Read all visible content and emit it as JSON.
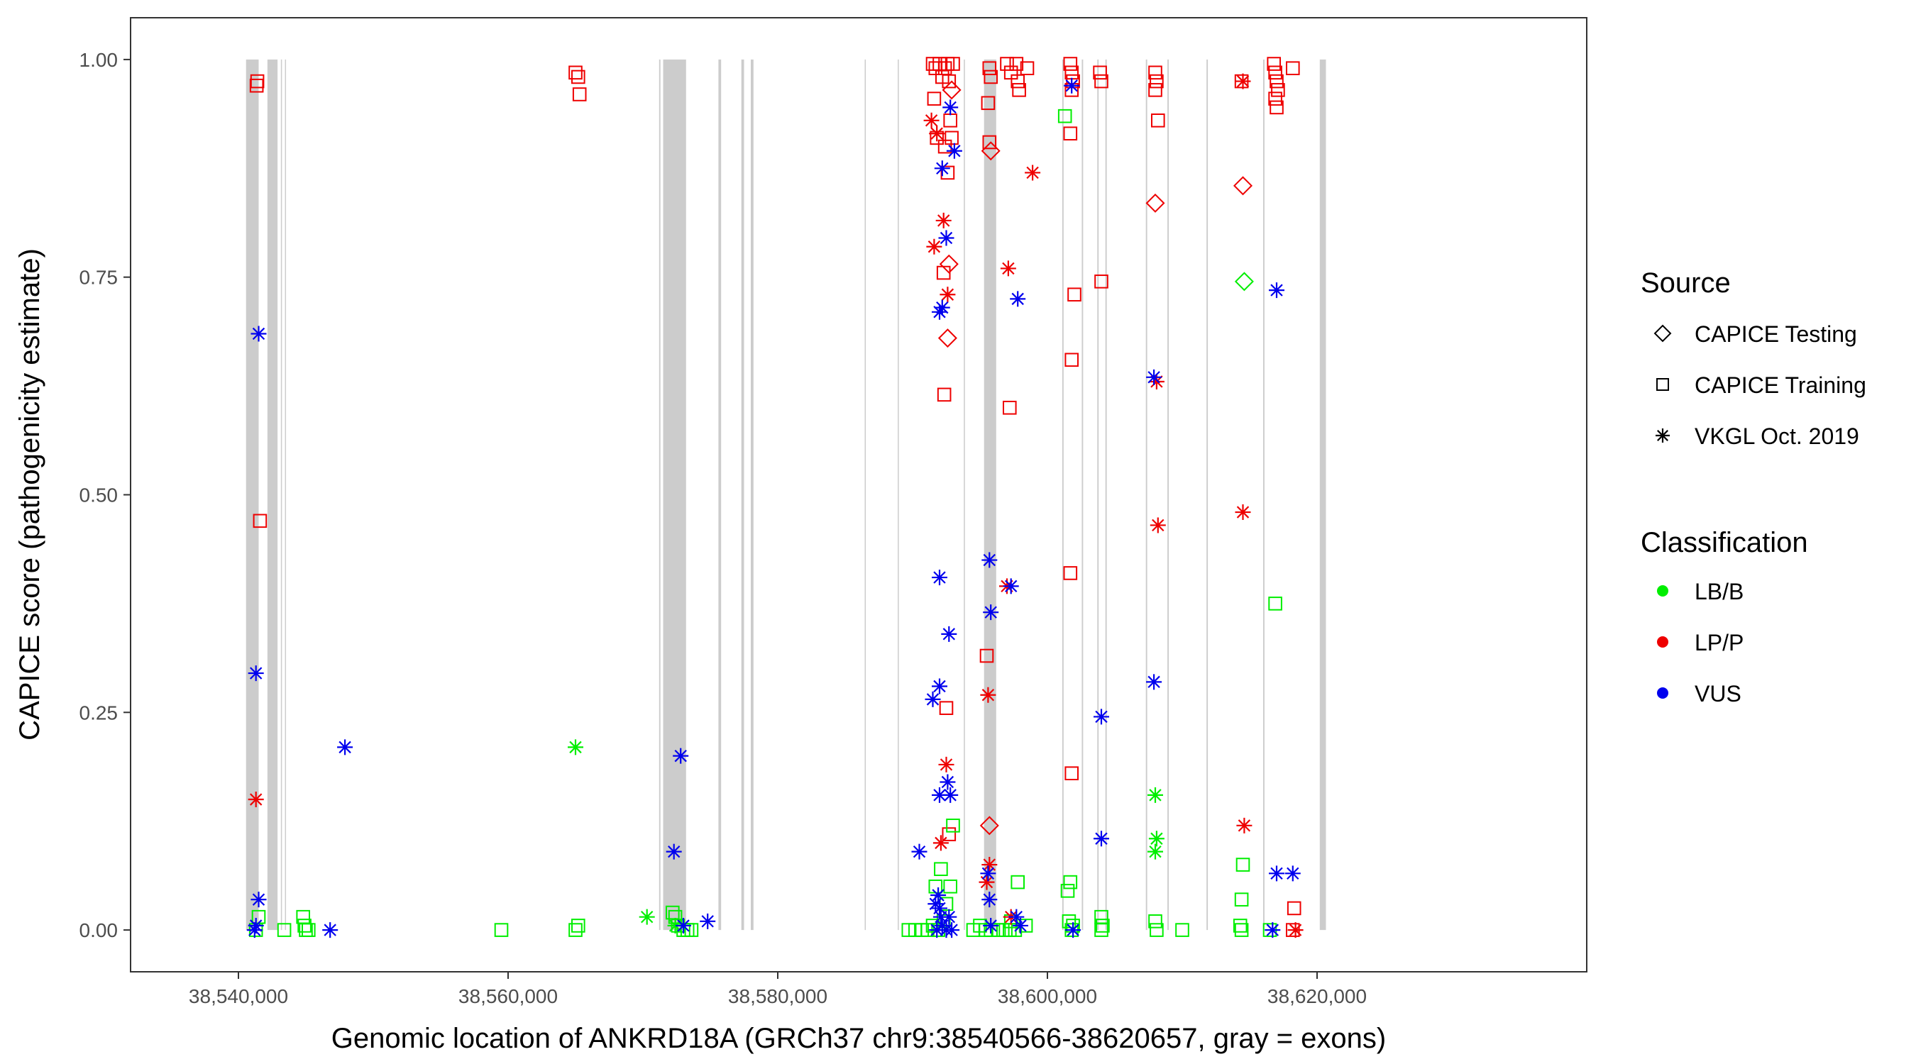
{
  "chart_data": {
    "type": "scatter",
    "xlabel": "Genomic location of ANKRD18A (GRCh37 chr9:38540566-38620657, gray = exons)",
    "ylabel": "CAPICE score (pathogenicity estimate)",
    "xlim": [
      38532000,
      38640000
    ],
    "ylim": [
      -0.048,
      1.048
    ],
    "x_ticks": [
      38540000,
      38560000,
      38580000,
      38600000,
      38620000
    ],
    "x_tick_labels": [
      "38,540,000",
      "38,560,000",
      "38,580,000",
      "38,600,000",
      "38,620,000"
    ],
    "y_ticks": [
      0,
      0.25,
      0.5,
      0.75,
      1.0
    ],
    "y_tick_labels": [
      "0.00",
      "0.25",
      "0.50",
      "0.75",
      "1.00"
    ],
    "grid": false,
    "exons": [
      [
        38540566,
        38541500
      ],
      [
        38542150,
        38542900
      ],
      [
        38543150,
        38543200
      ],
      [
        38543450,
        38543500
      ],
      [
        38571200,
        38571300
      ],
      [
        38571500,
        38573200
      ],
      [
        38575600,
        38575800
      ],
      [
        38577300,
        38577500
      ],
      [
        38578000,
        38578200
      ],
      [
        38586450,
        38586520
      ],
      [
        38588900,
        38588960
      ],
      [
        38593800,
        38593880
      ],
      [
        38595300,
        38596200
      ],
      [
        38601100,
        38601200
      ],
      [
        38602550,
        38602650
      ],
      [
        38603700,
        38603800
      ],
      [
        38604300,
        38604400
      ],
      [
        38607300,
        38607400
      ],
      [
        38608900,
        38609000
      ],
      [
        38611800,
        38611900
      ],
      [
        38616000,
        38616100
      ],
      [
        38620200,
        38620657
      ]
    ],
    "legend": {
      "position": "right",
      "source_title": "Source",
      "source_items": [
        {
          "label": "CAPICE Testing",
          "shape": "diamond"
        },
        {
          "label": "CAPICE Training",
          "shape": "square"
        },
        {
          "label": "VKGL Oct. 2019",
          "shape": "asterisk"
        }
      ],
      "class_title": "Classification",
      "class_items": [
        {
          "label": "LB/B",
          "color": "#00ee00"
        },
        {
          "label": "LP/P",
          "color": "#ee0000"
        },
        {
          "label": "VUS",
          "color": "#0000ee"
        }
      ]
    },
    "series": [
      {
        "source": "CAPICE Training",
        "shape": "square",
        "classification": "LP/P",
        "color": "#ee0000",
        "points": [
          [
            38541350,
            0.97
          ],
          [
            38541400,
            0.975
          ],
          [
            38541600,
            0.47
          ],
          [
            38565000,
            0.985
          ],
          [
            38565200,
            0.98
          ],
          [
            38565300,
            0.96
          ],
          [
            38591500,
            0.995
          ],
          [
            38591700,
            0.99
          ],
          [
            38591600,
            0.955
          ],
          [
            38591800,
            0.91
          ],
          [
            38592000,
            0.995
          ],
          [
            38592200,
            0.98
          ],
          [
            38592400,
            0.99
          ],
          [
            38592600,
            0.995
          ],
          [
            38592700,
            0.975
          ],
          [
            38592800,
            0.93
          ],
          [
            38592900,
            0.91
          ],
          [
            38593000,
            0.995
          ],
          [
            38592300,
            0.755
          ],
          [
            38592350,
            0.615
          ],
          [
            38592500,
            0.255
          ],
          [
            38592700,
            0.11
          ],
          [
            38592400,
            0.9
          ],
          [
            38592600,
            0.87
          ],
          [
            38595700,
            0.99
          ],
          [
            38595800,
            0.98
          ],
          [
            38595600,
            0.95
          ],
          [
            38595700,
            0.905
          ],
          [
            38595500,
            0.315
          ],
          [
            38597000,
            0.995
          ],
          [
            38597300,
            0.985
          ],
          [
            38597700,
            0.995
          ],
          [
            38597800,
            0.975
          ],
          [
            38597900,
            0.965
          ],
          [
            38598500,
            0.99
          ],
          [
            38597200,
            0.6
          ],
          [
            38601700,
            0.995
          ],
          [
            38601800,
            0.985
          ],
          [
            38601900,
            0.975
          ],
          [
            38601800,
            0.965
          ],
          [
            38601700,
            0.915
          ],
          [
            38601800,
            0.655
          ],
          [
            38601700,
            0.41
          ],
          [
            38601800,
            0.18
          ],
          [
            38602000,
            0.73
          ],
          [
            38603900,
            0.985
          ],
          [
            38604000,
            0.975
          ],
          [
            38604000,
            0.745
          ],
          [
            38608000,
            0.985
          ],
          [
            38608100,
            0.975
          ],
          [
            38608000,
            0.965
          ],
          [
            38608200,
            0.93
          ],
          [
            38614400,
            0.975
          ],
          [
            38616800,
            0.995
          ],
          [
            38616900,
            0.985
          ],
          [
            38617000,
            0.975
          ],
          [
            38617100,
            0.965
          ],
          [
            38616900,
            0.955
          ],
          [
            38617000,
            0.945
          ],
          [
            38618200,
            0.99
          ],
          [
            38618300,
            0.025
          ],
          [
            38618200,
            0.0
          ]
        ]
      },
      {
        "source": "CAPICE Training",
        "shape": "square",
        "classification": "LB/B",
        "color": "#00ee00",
        "points": [
          [
            38541300,
            0.0
          ],
          [
            38541500,
            0.015
          ],
          [
            38543400,
            0.0
          ],
          [
            38544800,
            0.015
          ],
          [
            38544900,
            0.005
          ],
          [
            38545000,
            0.0
          ],
          [
            38545200,
            0.0
          ],
          [
            38559500,
            0.0
          ],
          [
            38565000,
            0.0
          ],
          [
            38565200,
            0.005
          ],
          [
            38572200,
            0.02
          ],
          [
            38572400,
            0.015
          ],
          [
            38572600,
            0.005
          ],
          [
            38573000,
            0.0
          ],
          [
            38573300,
            0.0
          ],
          [
            38573600,
            0.0
          ],
          [
            38589700,
            0.0
          ],
          [
            38590200,
            0.0
          ],
          [
            38590700,
            0.0
          ],
          [
            38591100,
            0.0
          ],
          [
            38591500,
            0.005
          ],
          [
            38591900,
            0.0
          ],
          [
            38591700,
            0.05
          ],
          [
            38592100,
            0.07
          ],
          [
            38592500,
            0.03
          ],
          [
            38592800,
            0.05
          ],
          [
            38593000,
            0.12
          ],
          [
            38592300,
            0.01
          ],
          [
            38594500,
            0.0
          ],
          [
            38595000,
            0.005
          ],
          [
            38595400,
            0.0
          ],
          [
            38595800,
            0.0
          ],
          [
            38596400,
            0.0
          ],
          [
            38596900,
            0.0
          ],
          [
            38597300,
            0.01
          ],
          [
            38597800,
            0.055
          ],
          [
            38597600,
            0.0
          ],
          [
            38598400,
            0.005
          ],
          [
            38597200,
            0.0
          ],
          [
            38601300,
            0.935
          ],
          [
            38601500,
            0.045
          ],
          [
            38601700,
            0.055
          ],
          [
            38601600,
            0.01
          ],
          [
            38601800,
            0.0
          ],
          [
            38601900,
            0.005
          ],
          [
            38604000,
            0.015
          ],
          [
            38604100,
            0.005
          ],
          [
            38604000,
            0.0
          ],
          [
            38608000,
            0.01
          ],
          [
            38608100,
            0.0
          ],
          [
            38610000,
            0.0
          ],
          [
            38614300,
            0.005
          ],
          [
            38614400,
            0.0
          ],
          [
            38614500,
            0.075
          ],
          [
            38614400,
            0.035
          ],
          [
            38616900,
            0.375
          ],
          [
            38616500,
            0.0
          ]
        ]
      },
      {
        "source": "CAPICE Testing",
        "shape": "diamond",
        "classification": "LP/P",
        "color": "#ee0000",
        "points": [
          [
            38592600,
            0.68
          ],
          [
            38592700,
            0.765
          ],
          [
            38592900,
            0.965
          ],
          [
            38595800,
            0.895
          ],
          [
            38595700,
            0.12
          ],
          [
            38608000,
            0.835
          ],
          [
            38614500,
            0.855
          ]
        ]
      },
      {
        "source": "CAPICE Testing",
        "shape": "diamond",
        "classification": "LB/B",
        "color": "#00ee00",
        "points": [
          [
            38614600,
            0.745
          ]
        ]
      },
      {
        "source": "VKGL Oct. 2019",
        "shape": "asterisk",
        "classification": "LP/P",
        "color": "#ee0000",
        "points": [
          [
            38541300,
            0.15
          ],
          [
            38591400,
            0.93
          ],
          [
            38591600,
            0.785
          ],
          [
            38591800,
            0.915
          ],
          [
            38592300,
            0.815
          ],
          [
            38592600,
            0.73
          ],
          [
            38592500,
            0.19
          ],
          [
            38592100,
            0.1
          ],
          [
            38595600,
            0.27
          ],
          [
            38595700,
            0.075
          ],
          [
            38595500,
            0.055
          ],
          [
            38597100,
            0.76
          ],
          [
            38597000,
            0.395
          ],
          [
            38597300,
            0.015
          ],
          [
            38598900,
            0.87
          ],
          [
            38608200,
            0.465
          ],
          [
            38608100,
            0.63
          ],
          [
            38614500,
            0.48
          ],
          [
            38614600,
            0.12
          ],
          [
            38614500,
            0.975
          ],
          [
            38618400,
            0.0
          ]
        ]
      },
      {
        "source": "VKGL Oct. 2019",
        "shape": "asterisk",
        "classification": "LB/B",
        "color": "#00ee00",
        "points": [
          [
            38565000,
            0.21
          ],
          [
            38570300,
            0.015
          ],
          [
            38572400,
            0.005
          ],
          [
            38608000,
            0.155
          ],
          [
            38608100,
            0.105
          ],
          [
            38608000,
            0.09
          ]
        ]
      },
      {
        "source": "VKGL Oct. 2019",
        "shape": "asterisk",
        "classification": "VUS",
        "color": "#0000ee",
        "points": [
          [
            38541500,
            0.685
          ],
          [
            38541300,
            0.295
          ],
          [
            38541500,
            0.035
          ],
          [
            38541300,
            0.005
          ],
          [
            38541200,
            0.0
          ],
          [
            38546800,
            0.0
          ],
          [
            38547900,
            0.21
          ],
          [
            38572300,
            0.09
          ],
          [
            38572800,
            0.2
          ],
          [
            38573000,
            0.005
          ],
          [
            38574800,
            0.01
          ],
          [
            38590500,
            0.09
          ],
          [
            38591500,
            0.265
          ],
          [
            38592000,
            0.405
          ],
          [
            38592000,
            0.71
          ],
          [
            38592200,
            0.715
          ],
          [
            38592000,
            0.28
          ],
          [
            38592200,
            0.875
          ],
          [
            38592500,
            0.795
          ],
          [
            38592800,
            0.945
          ],
          [
            38593100,
            0.895
          ],
          [
            38592700,
            0.34
          ],
          [
            38592600,
            0.17
          ],
          [
            38592000,
            0.155
          ],
          [
            38592800,
            0.155
          ],
          [
            38591900,
            0.04
          ],
          [
            38592000,
            0.025
          ],
          [
            38592100,
            0.015
          ],
          [
            38592200,
            0.005
          ],
          [
            38591800,
            0.0
          ],
          [
            38592500,
            0.0
          ],
          [
            38592900,
            0.0
          ],
          [
            38592700,
            0.015
          ],
          [
            38591700,
            0.03
          ],
          [
            38595700,
            0.425
          ],
          [
            38595800,
            0.365
          ],
          [
            38595600,
            0.065
          ],
          [
            38595700,
            0.035
          ],
          [
            38595800,
            0.005
          ],
          [
            38597300,
            0.395
          ],
          [
            38597800,
            0.725
          ],
          [
            38597700,
            0.015
          ],
          [
            38598000,
            0.005
          ],
          [
            38601800,
            0.97
          ],
          [
            38601900,
            0.0
          ],
          [
            38604000,
            0.245
          ],
          [
            38604000,
            0.105
          ],
          [
            38607900,
            0.635
          ],
          [
            38607900,
            0.285
          ],
          [
            38616700,
            0.0
          ],
          [
            38617000,
            0.735
          ],
          [
            38617000,
            0.065
          ],
          [
            38618200,
            0.065
          ]
        ]
      }
    ]
  }
}
